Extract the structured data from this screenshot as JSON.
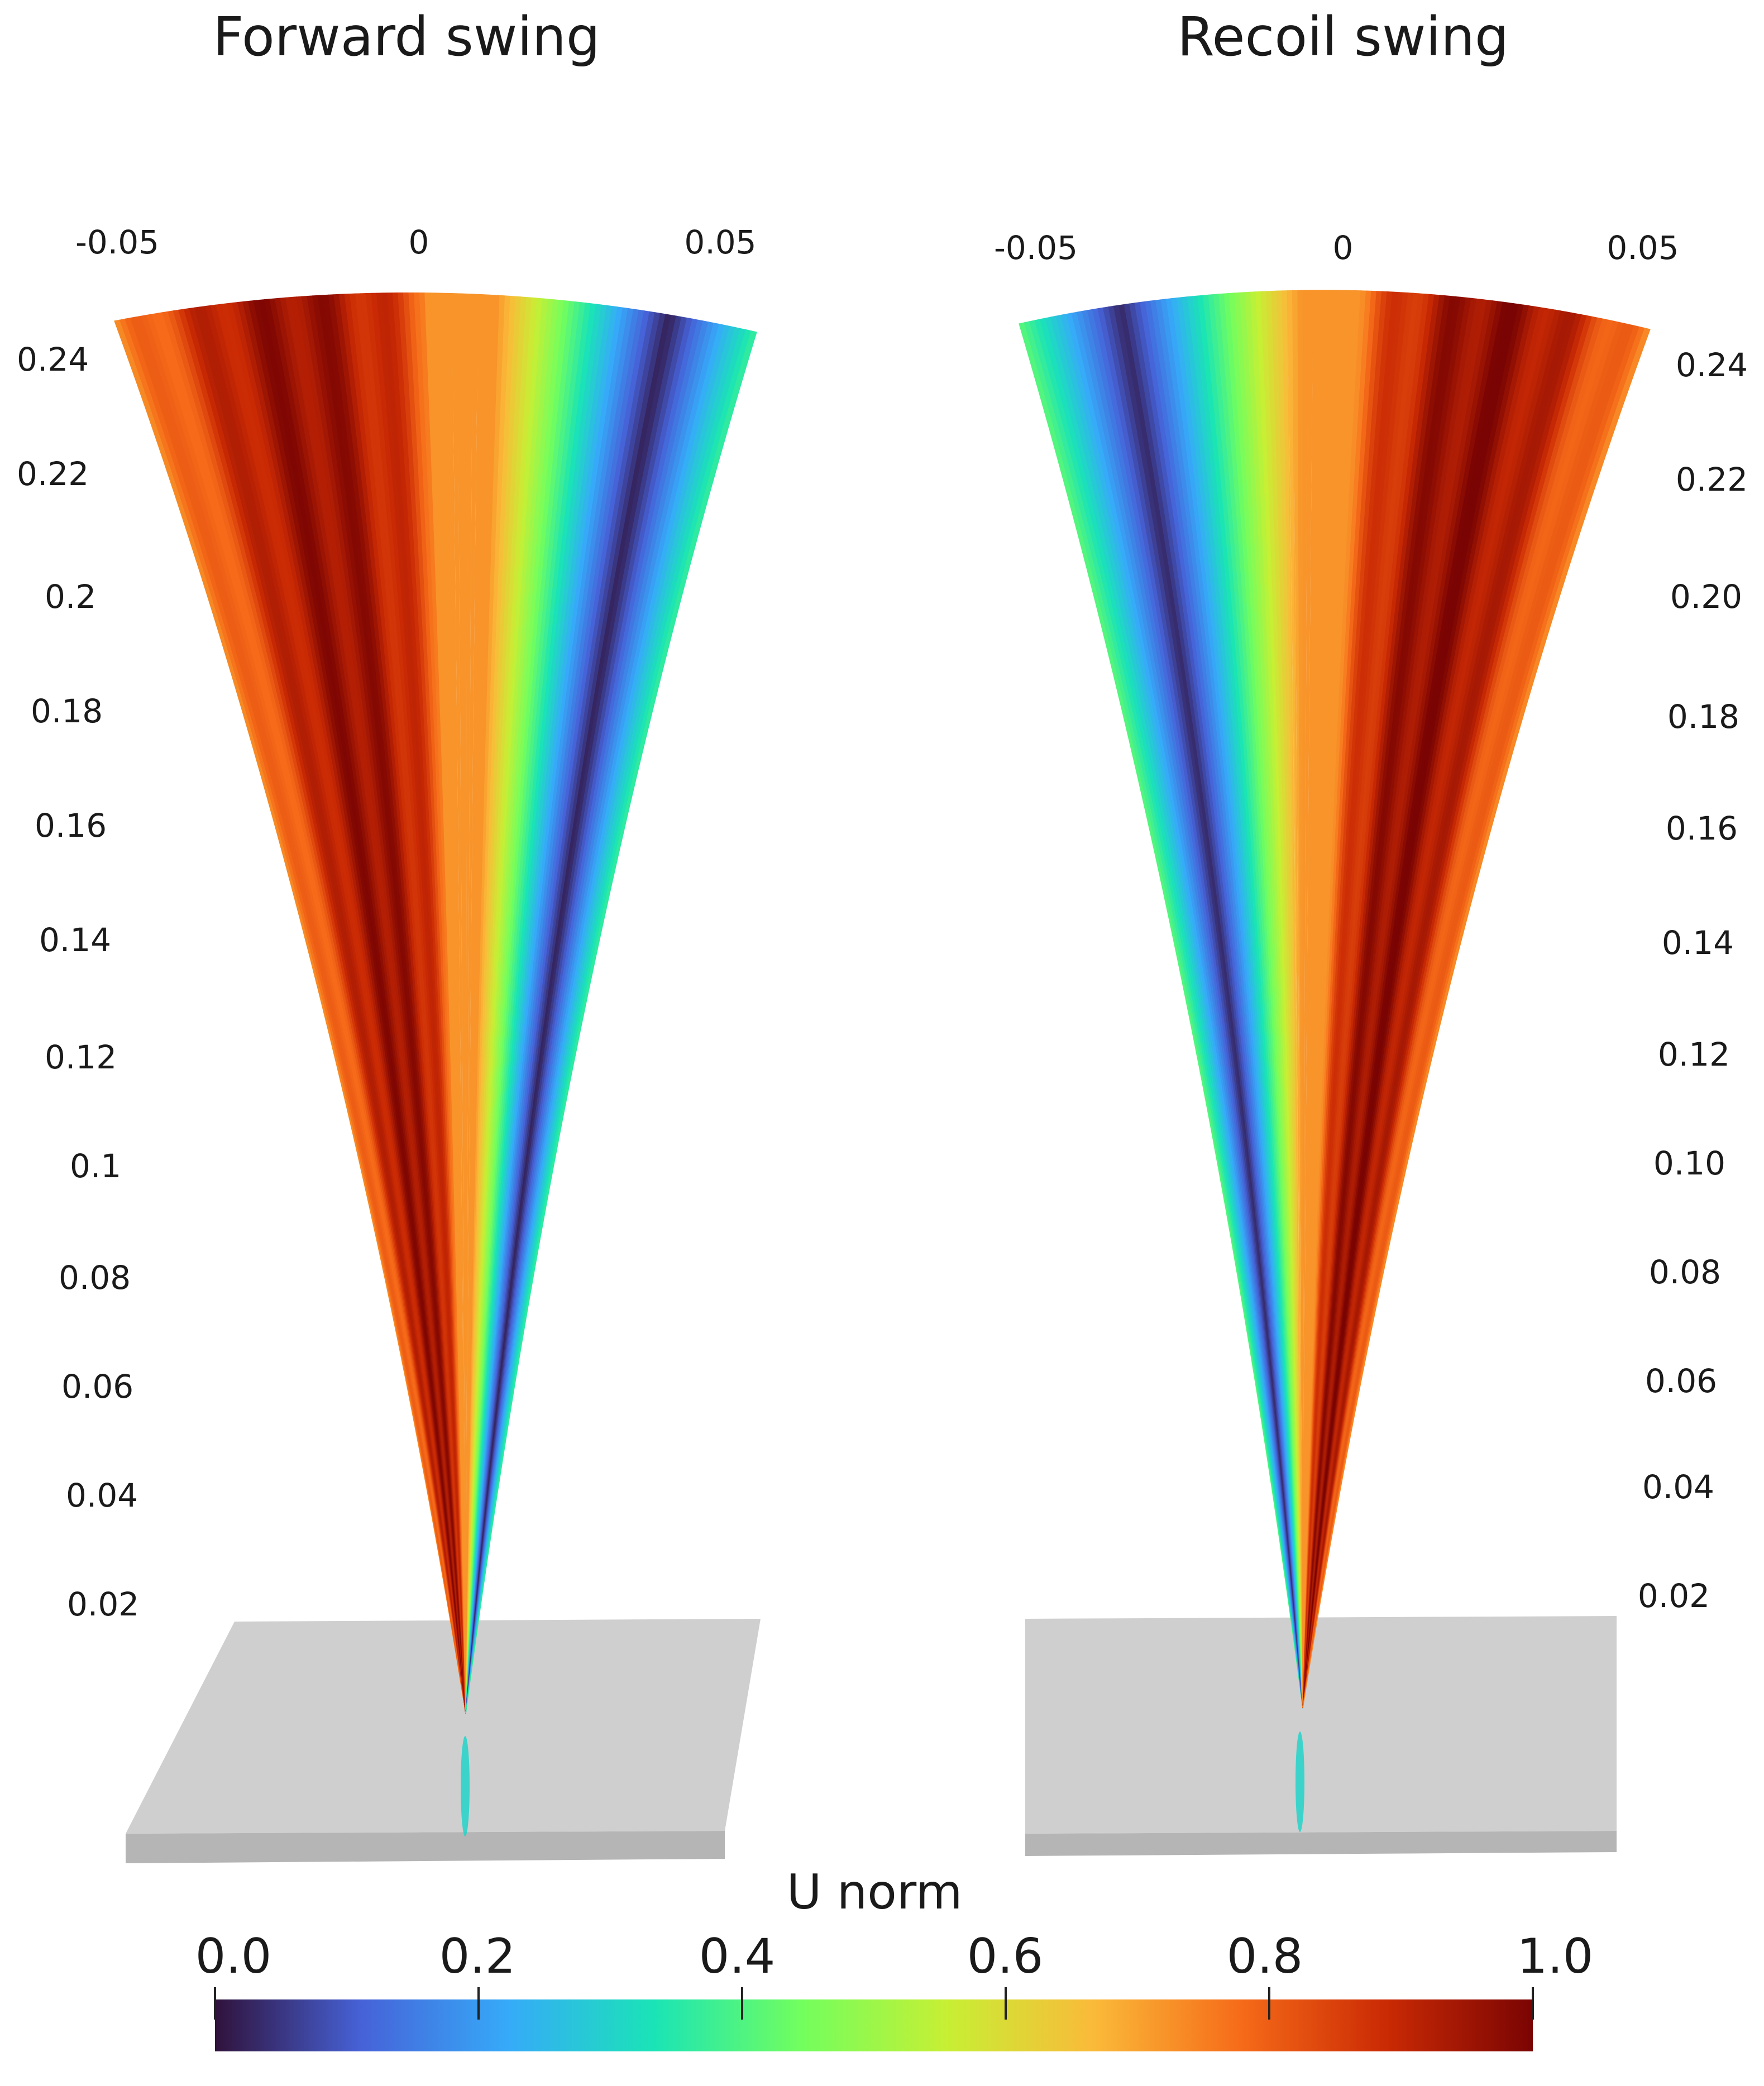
{
  "panels": {
    "left": {
      "title": "Forward swing",
      "x_ticks": [
        "-0.05",
        "0",
        "0.05"
      ],
      "y_ticks": [
        "0.24",
        "0.22",
        "0.2",
        "0.18",
        "0.16",
        "0.14",
        "0.12",
        "0.1",
        "0.08",
        "0.06",
        "0.04",
        "0.02"
      ]
    },
    "right": {
      "title": "Recoil swing",
      "x_ticks": [
        "-0.05",
        "0",
        "0.05"
      ],
      "y_ticks": [
        "0.24",
        "0.22",
        "0.20",
        "0.18",
        "0.16",
        "0.14",
        "0.12",
        "0.10",
        "0.08",
        "0.06",
        "0.04",
        "0.02"
      ]
    }
  },
  "colorbar": {
    "title": "U norm",
    "ticks": [
      "0.0",
      "0.2",
      "0.4",
      "0.6",
      "0.8",
      "1.0"
    ],
    "colormap": "turbo",
    "stops": [
      "#30123b",
      "#4662d7",
      "#36aaf9",
      "#1ae4b6",
      "#72fe5e",
      "#c7ef34",
      "#faba39",
      "#f66b19",
      "#ca2a04",
      "#7a0403"
    ]
  },
  "colors": {
    "platform": "#cfcfcf",
    "platform_edge": "#b5b5b5"
  }
}
